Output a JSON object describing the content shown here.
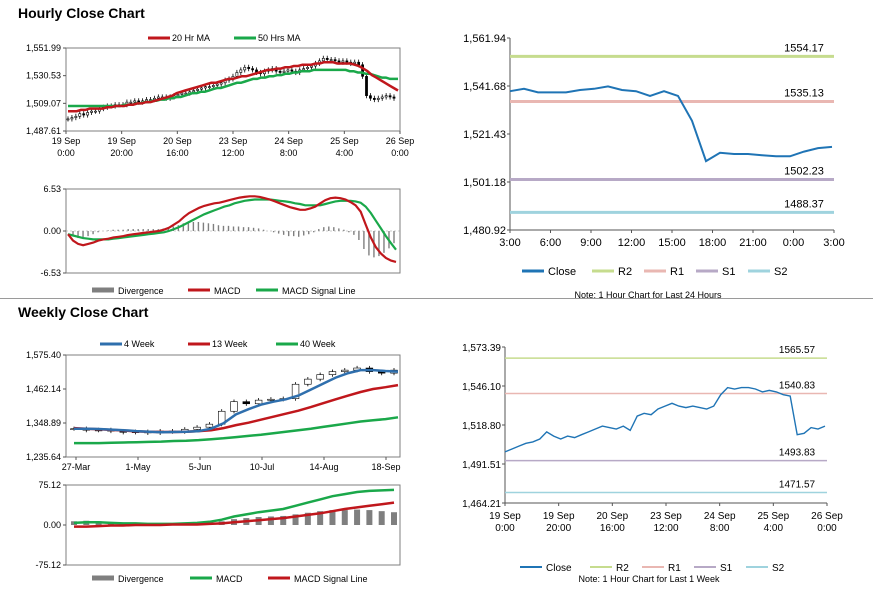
{
  "hourly": {
    "title": "Hourly Close Chart",
    "price_chart": {
      "type": "candlestick",
      "legend": [
        "20 Hr MA",
        "50 Hrs MA"
      ],
      "ylim": [
        1487.61,
        1551.99
      ],
      "y_ticks": [
        "1,551.99",
        "1,530.53",
        "1,509.07",
        "1,487.61"
      ],
      "x_ticks": [
        "19 Sep\n0:00",
        "19 Sep\n20:00",
        "20 Sep\n16:00",
        "23 Sep\n12:00",
        "24 Sep\n8:00",
        "25 Sep\n4:00",
        "26 Sep\n0:00"
      ],
      "close": [
        1497,
        1498,
        1499,
        1501,
        1500,
        1502,
        1503,
        1503,
        1505,
        1506,
        1507,
        1507,
        1508,
        1508,
        1508,
        1510,
        1510,
        1511,
        1510,
        1511,
        1512,
        1512,
        1513,
        1514,
        1514,
        1513,
        1514,
        1515,
        1516,
        1517,
        1517,
        1518,
        1519,
        1520,
        1521,
        1522,
        1522,
        1523,
        1524,
        1525,
        1527,
        1528,
        1530,
        1533,
        1535,
        1537,
        1536,
        1535,
        1533,
        1532,
        1534,
        1535,
        1536,
        1534,
        1533,
        1534,
        1535,
        1534,
        1533,
        1535,
        1536,
        1537,
        1538,
        1540,
        1542,
        1544,
        1543,
        1543,
        1542,
        1541,
        1542,
        1541,
        1540,
        1541,
        1539,
        1530,
        1515,
        1513,
        1512,
        1513,
        1514,
        1515,
        1514,
        1513
      ],
      "ma20": [
        1503,
        1503,
        1503,
        1504,
        1504,
        1505,
        1505,
        1505,
        1505,
        1506,
        1506,
        1507,
        1507,
        1507,
        1508,
        1508,
        1509,
        1509,
        1510,
        1510,
        1511,
        1512,
        1513,
        1514,
        1515,
        1517,
        1518,
        1519,
        1520,
        1521,
        1522,
        1523,
        1524,
        1525,
        1525,
        1526,
        1527,
        1528,
        1528,
        1529,
        1530,
        1530,
        1531,
        1532,
        1533,
        1534,
        1535,
        1535,
        1536,
        1536,
        1537,
        1537,
        1538,
        1538,
        1539,
        1539,
        1539,
        1540,
        1540,
        1541,
        1541,
        1541,
        1540,
        1540,
        1540,
        1540,
        1539,
        1538,
        1536,
        1534,
        1531,
        1529,
        1527,
        1525,
        1523,
        1521,
        1519
      ],
      "ma50": [
        1507,
        1507,
        1507,
        1507,
        1507,
        1507,
        1507,
        1507,
        1507,
        1507,
        1507,
        1507,
        1507,
        1507,
        1508,
        1508,
        1508,
        1509,
        1509,
        1510,
        1510,
        1511,
        1511,
        1512,
        1512,
        1513,
        1513,
        1514,
        1514,
        1515,
        1516,
        1517,
        1517,
        1518,
        1518,
        1519,
        1520,
        1521,
        1521,
        1522,
        1523,
        1524,
        1525,
        1525,
        1526,
        1527,
        1528,
        1528,
        1529,
        1529,
        1530,
        1530,
        1531,
        1531,
        1532,
        1532,
        1533,
        1533,
        1534,
        1534,
        1534,
        1535,
        1535,
        1535,
        1535,
        1535,
        1535,
        1535,
        1535,
        1535,
        1534,
        1534,
        1533,
        1533,
        1532,
        1532,
        1531,
        1530,
        1529,
        1529,
        1528,
        1528,
        1528
      ]
    },
    "macd_chart": {
      "type": "macd",
      "legend": [
        "Divergence",
        "MACD",
        "MACD Signal Line"
      ],
      "ylim": [
        -6.53,
        6.53
      ],
      "y_ticks": [
        "6.53",
        "0.00",
        "-6.53"
      ],
      "macd": [
        -0.5,
        -1.5,
        -2.0,
        -2.2,
        -2.0,
        -1.8,
        -1.5,
        -1.3,
        -1.2,
        -1.0,
        -0.9,
        -0.8,
        -0.6,
        -0.5,
        -0.4,
        -0.3,
        -0.2,
        -0.1,
        0.0,
        0.2,
        0.5,
        1.0,
        1.5,
        2.2,
        2.8,
        3.2,
        3.6,
        3.9,
        4.1,
        4.3,
        4.4,
        4.6,
        4.8,
        5.0,
        5.2,
        5.3,
        5.4,
        5.4,
        5.3,
        5.1,
        4.9,
        4.6,
        4.3,
        4.0,
        3.7,
        3.5,
        3.3,
        3.3,
        3.5,
        3.8,
        4.3,
        4.8,
        5.1,
        5.2,
        5.1,
        4.9,
        4.5,
        4.0,
        3.0,
        1.0,
        -1.0,
        -2.5,
        -3.5,
        -4.2,
        -4.6,
        -4.8
      ],
      "signal": [
        -0.5,
        -0.7,
        -0.9,
        -1.1,
        -1.2,
        -1.3,
        -1.3,
        -1.3,
        -1.3,
        -1.2,
        -1.1,
        -1.0,
        -0.9,
        -0.8,
        -0.7,
        -0.6,
        -0.5,
        -0.4,
        -0.3,
        -0.2,
        0.0,
        0.3,
        0.6,
        1.0,
        1.4,
        1.8,
        2.2,
        2.6,
        2.9,
        3.2,
        3.5,
        3.8,
        4.0,
        4.3,
        4.5,
        4.7,
        4.8,
        4.9,
        4.9,
        4.9,
        4.9,
        4.8,
        4.7,
        4.6,
        4.5,
        4.3,
        4.2,
        4.0,
        4.0,
        4.0,
        4.0,
        4.2,
        4.4,
        4.6,
        4.7,
        4.7,
        4.7,
        4.6,
        4.4,
        3.8,
        2.8,
        1.6,
        0.4,
        -0.8,
        -1.9,
        -2.9
      ]
    }
  },
  "hourly_levels": {
    "type": "line",
    "ylim": [
      1480.92,
      1561.94
    ],
    "y_ticks": [
      "1,561.94",
      "1,541.68",
      "1,521.43",
      "1,501.18",
      "1,480.92"
    ],
    "x_ticks": [
      "3:00",
      "6:00",
      "9:00",
      "12:00",
      "15:00",
      "18:00",
      "21:00",
      "0:00",
      "3:00"
    ],
    "close": [
      1539.5,
      1540.5,
      1539,
      1539,
      1539,
      1540,
      1540.5,
      1541.5,
      1540,
      1539.5,
      1537.5,
      1539.5,
      1537.5,
      1527,
      1510,
      1513.5,
      1513,
      1513,
      1512.5,
      1512,
      1512,
      1514,
      1515.5,
      1516
    ],
    "levels": {
      "R2": 1554.17,
      "R1": 1535.13,
      "S1": 1502.23,
      "S2": 1488.37
    },
    "level_labels": [
      "1554.17",
      "1535.13",
      "1502.23",
      "1488.37"
    ],
    "legend": [
      "Close",
      "R2",
      "R1",
      "S1",
      "S2"
    ],
    "note": "Note: 1 Hour Chart for Last 24 Hours"
  },
  "weekly": {
    "title": "Weekly Close Chart",
    "price_chart": {
      "type": "candlestick",
      "legend": [
        "4 Week",
        "13 Week",
        "40 Week"
      ],
      "ylim": [
        1235.64,
        1575.4
      ],
      "y_ticks": [
        "1,575.40",
        "1,462.14",
        "1,348.89",
        "1,235.64"
      ],
      "x_ticks": [
        "27-Mar",
        "1-May",
        "5-Jun",
        "10-Jul",
        "14-Aug",
        "18-Sep"
      ],
      "close": [
        1330,
        1325,
        1326,
        1322,
        1318,
        1320,
        1316,
        1322,
        1320,
        1328,
        1335,
        1345,
        1388,
        1420,
        1413,
        1425,
        1428,
        1430,
        1478,
        1495,
        1510,
        1520,
        1525,
        1532,
        1520,
        1515,
        1525
      ],
      "ma4": [
        1330,
        1330,
        1329,
        1327,
        1325,
        1322,
        1320,
        1318,
        1319,
        1320,
        1322,
        1330,
        1348,
        1378,
        1395,
        1410,
        1420,
        1428,
        1440,
        1460,
        1480,
        1500,
        1515,
        1525,
        1525,
        1522,
        1520
      ],
      "ma13": [
        1332,
        1330,
        1328,
        1326,
        1324,
        1321,
        1320,
        1319,
        1319,
        1320,
        1322,
        1325,
        1332,
        1342,
        1350,
        1360,
        1370,
        1380,
        1390,
        1402,
        1415,
        1428,
        1440,
        1452,
        1462,
        1468,
        1475
      ],
      "ma40": [
        1282,
        1282,
        1282,
        1283,
        1284,
        1285,
        1286,
        1287,
        1289,
        1290,
        1292,
        1295,
        1298,
        1302,
        1306,
        1310,
        1315,
        1320,
        1325,
        1330,
        1336,
        1342,
        1348,
        1354,
        1358,
        1362,
        1368
      ]
    },
    "macd_chart": {
      "type": "macd",
      "legend": [
        "Divergence",
        "MACD",
        "MACD Signal Line"
      ],
      "ylim": [
        -75.12,
        75.12
      ],
      "y_ticks": [
        "75.12",
        "0.00",
        "-75.12"
      ],
      "macd": [
        4,
        5,
        5,
        4,
        3,
        3,
        2,
        2,
        2,
        3,
        4,
        6,
        10,
        16,
        20,
        24,
        27,
        30,
        36,
        42,
        48,
        54,
        58,
        62,
        64,
        65,
        66
      ],
      "signal": [
        -3,
        -3,
        -2,
        -1,
        -1,
        0,
        0,
        0,
        1,
        1,
        1,
        2,
        3,
        5,
        7,
        9,
        11,
        13,
        16,
        19,
        22,
        26,
        30,
        33,
        36,
        39,
        42
      ]
    }
  },
  "weekly_levels": {
    "type": "line",
    "ylim": [
      1464.21,
      1573.39
    ],
    "y_ticks": [
      "1,573.39",
      "1,546.10",
      "1,518.80",
      "1,491.51",
      "1,464.21"
    ],
    "x_ticks": [
      "19 Sep\n0:00",
      "19 Sep\n20:00",
      "20 Sep\n16:00",
      "23 Sep\n12:00",
      "24 Sep\n8:00",
      "25 Sep\n4:00",
      "26 Sep\n0:00"
    ],
    "close": [
      1500,
      1502,
      1504,
      1506,
      1507,
      1509,
      1514,
      1511,
      1509,
      1511,
      1510,
      1512,
      1514,
      1516,
      1518,
      1517,
      1516,
      1518,
      1515,
      1525,
      1527,
      1526,
      1530,
      1532,
      1534,
      1532,
      1531,
      1532,
      1531,
      1530,
      1532,
      1540,
      1545,
      1544,
      1545,
      1545,
      1544,
      1542,
      1543,
      1542,
      1540,
      1539,
      1512,
      1513,
      1517,
      1516,
      1518
    ],
    "levels": {
      "R2": 1565.57,
      "R1": 1540.83,
      "S1": 1493.83,
      "S2": 1471.57
    },
    "level_labels": [
      "1565.57",
      "1540.83",
      "1493.83",
      "1471.57"
    ],
    "legend": [
      "Close",
      "R2",
      "R1",
      "S1",
      "S2"
    ],
    "note": "Note: 1 Hour Chart for Last 1 Week"
  },
  "colors": {
    "red": "#c0171c",
    "green": "#1aa84a",
    "blue": "#2f6fad",
    "r2": "#c6dc8e",
    "r1": "#e9b7b2",
    "s1": "#b7a9c6",
    "s2": "#9fd3de",
    "divergence": "#7f7f7f",
    "close_line": "#1f74b5"
  }
}
